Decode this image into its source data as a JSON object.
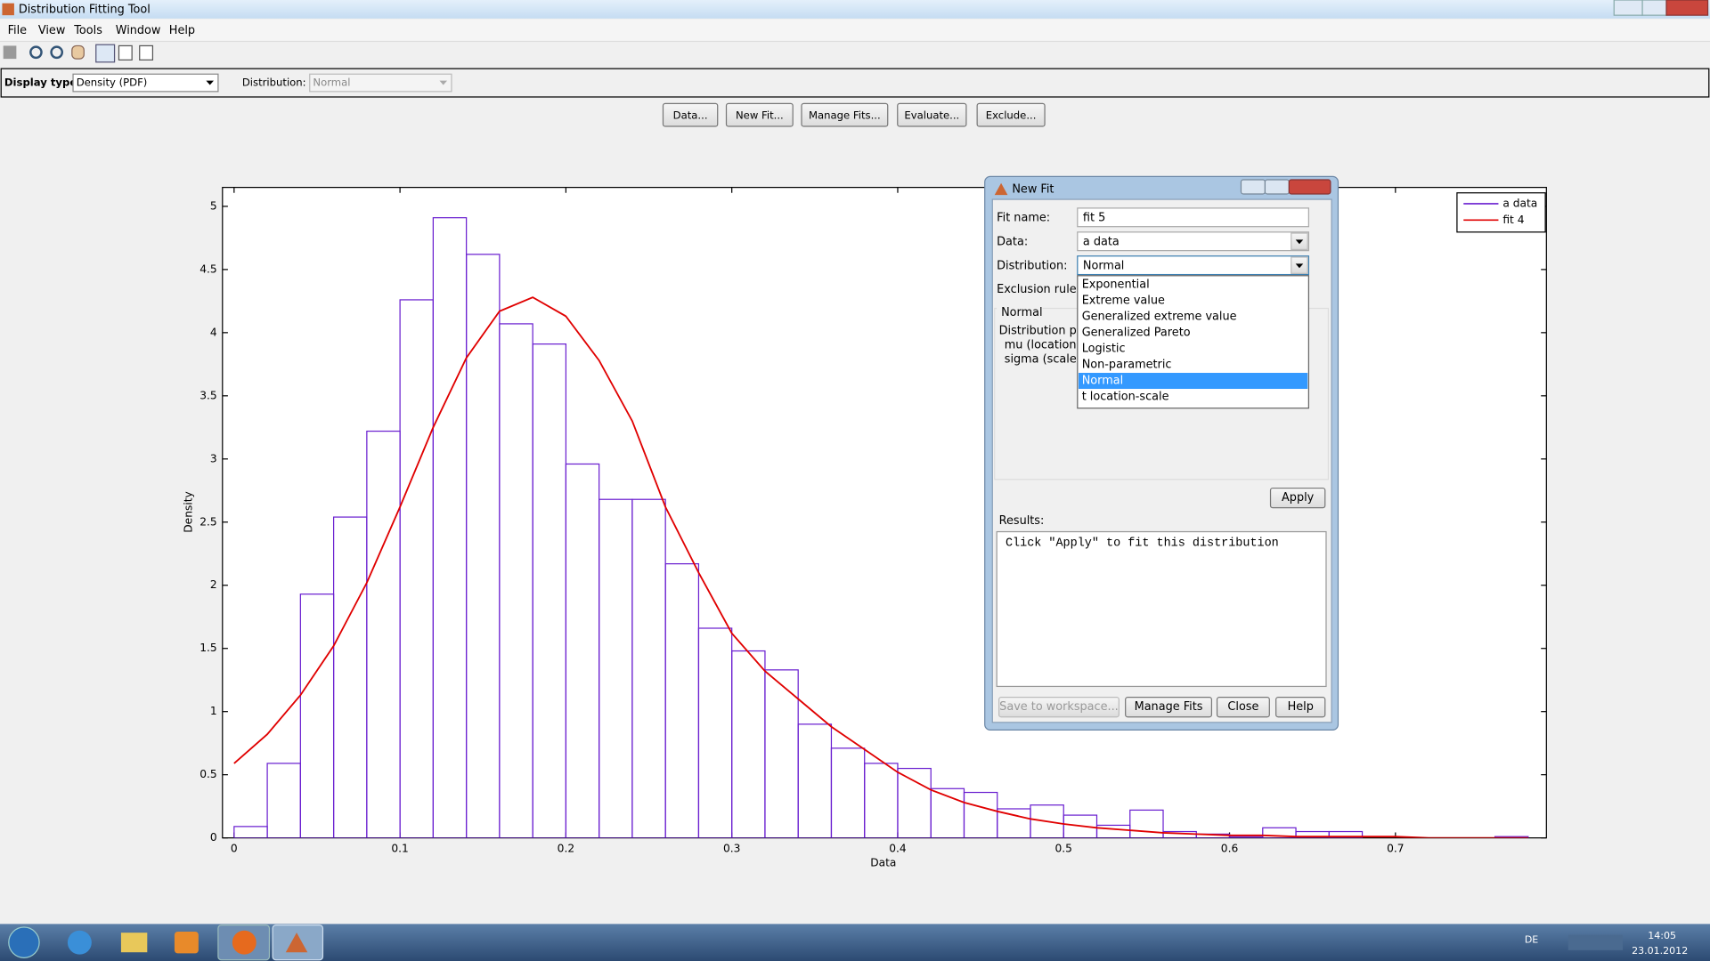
{
  "window": {
    "title": "Distribution Fitting Tool"
  },
  "menu": [
    "File",
    "View",
    "Tools",
    "Window",
    "Help"
  ],
  "display": {
    "type_label": "Display type:",
    "type_value": "Density (PDF)",
    "dist_label": "Distribution:",
    "dist_value": "Normal"
  },
  "buttons": [
    "Data...",
    "New Fit...",
    "Manage Fits...",
    "Evaluate...",
    "Exclude..."
  ],
  "chart_data": {
    "type": "histogram",
    "xlabel": "Data",
    "ylabel": "Density",
    "xlim": [
      -0.007,
      0.791
    ],
    "ylim": [
      0,
      5.15
    ],
    "xticks": [
      0,
      0.1,
      0.2,
      0.3,
      0.4,
      0.5,
      0.6,
      0.7
    ],
    "yticks": [
      0,
      0.5,
      1,
      1.5,
      2,
      2.5,
      3,
      3.5,
      4,
      4.5,
      5
    ],
    "legend": "upper right",
    "bins": [
      0,
      0.02,
      0.04,
      0.06,
      0.08,
      0.1,
      0.12,
      0.14,
      0.16,
      0.18,
      0.2,
      0.22,
      0.24,
      0.26,
      0.28,
      0.3,
      0.32,
      0.34,
      0.36,
      0.38,
      0.4,
      0.42,
      0.44,
      0.46,
      0.48,
      0.5,
      0.52,
      0.54,
      0.56,
      0.58,
      0.6,
      0.62,
      0.64,
      0.66,
      0.68,
      0.7,
      0.72,
      0.74,
      0.76,
      0.78
    ],
    "series": [
      {
        "name": "a data",
        "type": "histogram",
        "color": "#6a1fd0",
        "values": [
          0.09,
          0.59,
          1.93,
          2.54,
          3.22,
          4.26,
          4.91,
          4.62,
          4.07,
          3.91,
          2.96,
          2.68,
          2.68,
          2.17,
          1.66,
          1.48,
          1.33,
          0.9,
          0.71,
          0.59,
          0.55,
          0.39,
          0.36,
          0.23,
          0.26,
          0.18,
          0.1,
          0.22,
          0.05,
          0.03,
          0.01,
          0.08,
          0.05,
          0.05,
          0,
          0,
          0,
          0,
          0.01
        ]
      },
      {
        "name": "fit 4",
        "type": "line",
        "color": "#e00000",
        "x": [
          0,
          0.02,
          0.04,
          0.06,
          0.08,
          0.1,
          0.12,
          0.14,
          0.16,
          0.18,
          0.2,
          0.22,
          0.24,
          0.26,
          0.28,
          0.3,
          0.32,
          0.34,
          0.36,
          0.38,
          0.4,
          0.42,
          0.44,
          0.46,
          0.48,
          0.5,
          0.52,
          0.54,
          0.56,
          0.58,
          0.6,
          0.62,
          0.64,
          0.66,
          0.68,
          0.7,
          0.72,
          0.74,
          0.76,
          0.78
        ],
        "values": [
          0.59,
          0.82,
          1.13,
          1.52,
          2.02,
          2.62,
          3.25,
          3.8,
          4.17,
          4.28,
          4.13,
          3.78,
          3.3,
          2.62,
          2.1,
          1.62,
          1.32,
          1.1,
          0.88,
          0.7,
          0.52,
          0.38,
          0.28,
          0.21,
          0.15,
          0.11,
          0.08,
          0.06,
          0.04,
          0.03,
          0.02,
          0.02,
          0.01,
          0.01,
          0.01,
          0.01,
          0,
          0,
          0,
          0
        ]
      }
    ]
  },
  "dialog": {
    "title": "New Fit",
    "fields": [
      {
        "label": "Fit name:",
        "value": "fit 5"
      },
      {
        "label": "Data:",
        "value": "a data"
      },
      {
        "label": "Distribution:",
        "value": "Normal"
      },
      {
        "label": "Exclusion rule:"
      }
    ],
    "options": [
      "Exponential",
      "Extreme value",
      "Generalized extreme value",
      "Generalized Pareto",
      "Logistic",
      "Non-parametric",
      "Normal",
      "t location-scale"
    ],
    "selected": 6,
    "section": "Normal",
    "params": [
      "Distribution para",
      "mu (location)",
      "sigma (scale)"
    ],
    "apply": "Apply",
    "results_label": "Results:",
    "results": "Click \"Apply\" to fit this distribution",
    "buttons": [
      "Save to workspace...",
      "Manage Fits",
      "Close",
      "Help"
    ]
  },
  "taskbar": {
    "lang": "DE",
    "time": "14:05",
    "date": "23.01.2012"
  }
}
